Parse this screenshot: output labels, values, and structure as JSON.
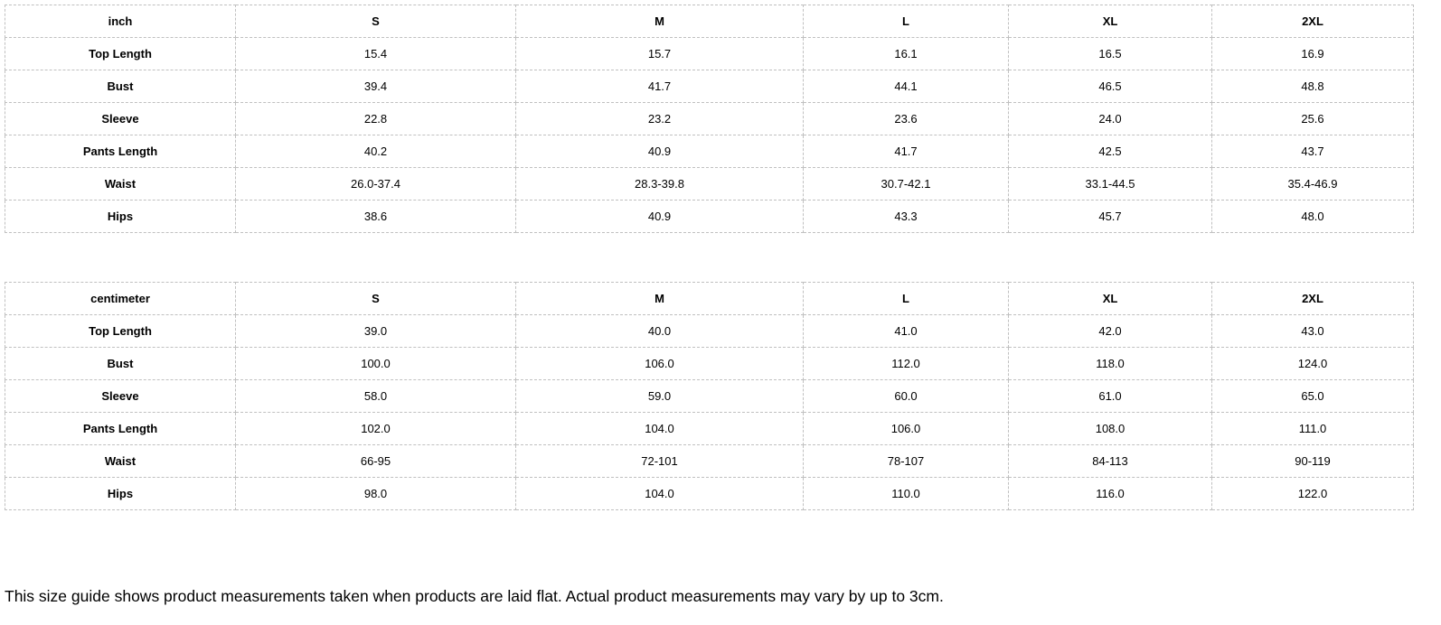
{
  "style": {
    "border_color": "#c0c0c0",
    "text_color": "#000000",
    "background": "#ffffff"
  },
  "tables": [
    {
      "unit": "inch",
      "columns": [
        "inch",
        "S",
        "M",
        "L",
        "XL",
        "2XL"
      ],
      "rows": [
        {
          "label": "Top Length",
          "values": [
            "15.4",
            "15.7",
            "16.1",
            "16.5",
            "16.9"
          ]
        },
        {
          "label": "Bust",
          "values": [
            "39.4",
            "41.7",
            "44.1",
            "46.5",
            "48.8"
          ]
        },
        {
          "label": "Sleeve",
          "values": [
            "22.8",
            "23.2",
            "23.6",
            "24.0",
            "25.6"
          ]
        },
        {
          "label": "Pants Length",
          "values": [
            "40.2",
            "40.9",
            "41.7",
            "42.5",
            "43.7"
          ]
        },
        {
          "label": "Waist",
          "values": [
            "26.0-37.4",
            "28.3-39.8",
            "30.7-42.1",
            "33.1-44.5",
            "35.4-46.9"
          ]
        },
        {
          "label": "Hips",
          "values": [
            "38.6",
            "40.9",
            "43.3",
            "45.7",
            "48.0"
          ]
        }
      ]
    },
    {
      "unit": "centimeter",
      "columns": [
        "centimeter",
        "S",
        "M",
        "L",
        "XL",
        "2XL"
      ],
      "rows": [
        {
          "label": "Top Length",
          "values": [
            "39.0",
            "40.0",
            "41.0",
            "42.0",
            "43.0"
          ]
        },
        {
          "label": "Bust",
          "values": [
            "100.0",
            "106.0",
            "112.0",
            "118.0",
            "124.0"
          ]
        },
        {
          "label": "Sleeve",
          "values": [
            "58.0",
            "59.0",
            "60.0",
            "61.0",
            "65.0"
          ]
        },
        {
          "label": "Pants Length",
          "values": [
            "102.0",
            "104.0",
            "106.0",
            "108.0",
            "111.0"
          ]
        },
        {
          "label": "Waist",
          "values": [
            "66-95",
            "72-101",
            "78-107",
            "84-113",
            "90-119"
          ]
        },
        {
          "label": "Hips",
          "values": [
            "98.0",
            "104.0",
            "110.0",
            "116.0",
            "122.0"
          ]
        }
      ]
    }
  ],
  "footer": {
    "note": "This size guide shows product measurements taken when products are laid flat. Actual product measurements may vary by up to 3cm."
  }
}
